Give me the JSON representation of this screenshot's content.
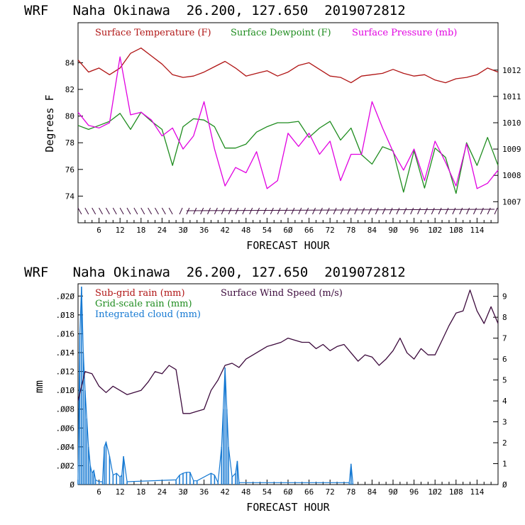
{
  "chart_data": [
    {
      "type": "line",
      "title": "WRF   Naha Okinawa  26.200, 127.650  2019072812",
      "xlabel": "FORECAST HOUR",
      "ylabel": "Degrees F",
      "xlim": [
        0,
        120
      ],
      "ylim": [
        72,
        87
      ],
      "y2lim": [
        1006.2,
        1013.8
      ],
      "x_ticks": [
        6,
        12,
        18,
        24,
        30,
        36,
        42,
        48,
        54,
        60,
        66,
        72,
        78,
        84,
        90,
        96,
        102,
        108,
        114
      ],
      "x_tick_labels": [
        "6",
        "12",
        "18",
        "24",
        "3Ø",
        "36",
        "42",
        "48",
        "54",
        "6Ø",
        "66",
        "72",
        "78",
        "84",
        "9Ø",
        "96",
        "1Ø2",
        "1Ø8",
        "114"
      ],
      "y_ticks": [
        74,
        76,
        78,
        80,
        82,
        84
      ],
      "y2_ticks": [
        1007,
        1008,
        1009,
        1010,
        1011,
        1012
      ],
      "series": [
        {
          "name": "Surface Temperature (F)",
          "color": "#b01414",
          "axis": "left",
          "x": [
            0,
            3,
            6,
            9,
            12,
            15,
            18,
            21,
            24,
            27,
            30,
            33,
            36,
            39,
            42,
            45,
            48,
            51,
            54,
            57,
            60,
            63,
            66,
            69,
            72,
            75,
            78,
            81,
            84,
            87,
            90,
            93,
            96,
            99,
            102,
            105,
            108,
            111,
            114,
            117,
            120
          ],
          "values": [
            84.2,
            83.3,
            83.6,
            83.1,
            83.6,
            84.7,
            85.1,
            84.5,
            83.9,
            83.1,
            82.9,
            83.0,
            83.3,
            83.7,
            84.1,
            83.6,
            83.0,
            83.2,
            83.4,
            83.0,
            83.3,
            83.8,
            84.0,
            83.5,
            83.0,
            82.9,
            82.5,
            83.0,
            83.1,
            83.2,
            83.5,
            83.2,
            83.0,
            83.1,
            82.7,
            82.5,
            82.8,
            82.9,
            83.1,
            83.6,
            83.3
          ]
        },
        {
          "name": "Surface Dewpoint (F)",
          "color": "#1e8c1e",
          "axis": "left",
          "x": [
            0,
            3,
            6,
            9,
            12,
            15,
            18,
            21,
            24,
            27,
            30,
            33,
            36,
            39,
            42,
            45,
            48,
            51,
            54,
            57,
            60,
            63,
            66,
            69,
            72,
            75,
            78,
            81,
            84,
            87,
            90,
            93,
            96,
            99,
            102,
            105,
            108,
            111,
            114,
            117,
            120
          ],
          "values": [
            79.3,
            79.0,
            79.3,
            79.6,
            80.2,
            79.0,
            80.3,
            79.6,
            79.0,
            76.3,
            79.2,
            79.8,
            79.7,
            79.2,
            77.6,
            77.6,
            77.9,
            78.8,
            79.2,
            79.5,
            79.5,
            79.6,
            78.4,
            79.1,
            79.6,
            78.2,
            79.1,
            77.1,
            76.4,
            77.7,
            77.4,
            74.3,
            77.4,
            74.6,
            77.6,
            76.9,
            74.2,
            78.0,
            76.3,
            78.4,
            76.3
          ]
        },
        {
          "name": "Surface Pressure (mb)",
          "color": "#e100e1",
          "axis": "right",
          "x": [
            0,
            3,
            6,
            9,
            12,
            15,
            18,
            21,
            24,
            27,
            30,
            33,
            36,
            39,
            42,
            45,
            48,
            51,
            54,
            57,
            60,
            63,
            66,
            69,
            72,
            75,
            78,
            81,
            84,
            87,
            90,
            93,
            96,
            99,
            102,
            105,
            108,
            111,
            114,
            117,
            120
          ],
          "values": [
            1010.4,
            1009.9,
            1009.8,
            1010.0,
            1012.5,
            1010.3,
            1010.4,
            1010.1,
            1009.5,
            1009.8,
            1009.0,
            1009.5,
            1010.8,
            1009.0,
            1007.6,
            1008.3,
            1008.1,
            1008.9,
            1007.5,
            1007.8,
            1009.6,
            1009.1,
            1009.6,
            1008.8,
            1009.3,
            1007.8,
            1008.8,
            1008.8,
            1010.8,
            1009.8,
            1008.9,
            1008.2,
            1009.0,
            1007.8,
            1009.3,
            1008.5,
            1007.6,
            1009.2,
            1007.5,
            1007.7,
            1008.2
          ]
        }
      ],
      "wind_barbs_note": "wind barbs along bottom",
      "wind_barb_hours": [
        1,
        3,
        5,
        7,
        9,
        11,
        13,
        15,
        17,
        19,
        21,
        23,
        25,
        27,
        29,
        31,
        33,
        35,
        37,
        39,
        41,
        43,
        45,
        47,
        49,
        51,
        53,
        55,
        57,
        59,
        61,
        63,
        65,
        67,
        69,
        71,
        73,
        75,
        77,
        79,
        81,
        83,
        85,
        87,
        89,
        91,
        93,
        95,
        97,
        99,
        101,
        103,
        105,
        107,
        109,
        111,
        113,
        115,
        117,
        119
      ]
    },
    {
      "type": "line",
      "title": "WRF   Naha Okinawa  26.200, 127.650  2019072812",
      "xlabel": "FORECAST HOUR",
      "ylabel": "mm",
      "xlim": [
        0,
        120
      ],
      "ylim": [
        0,
        0.0213
      ],
      "y2lim": [
        0,
        9.6
      ],
      "x_ticks": [
        6,
        12,
        18,
        24,
        30,
        36,
        42,
        48,
        54,
        60,
        66,
        72,
        78,
        84,
        90,
        96,
        102,
        108,
        114
      ],
      "x_tick_labels": [
        "6",
        "12",
        "18",
        "24",
        "3Ø",
        "36",
        "42",
        "48",
        "54",
        "6Ø",
        "66",
        "72",
        "78",
        "84",
        "9Ø",
        "96",
        "1Ø2",
        "1Ø8",
        "114"
      ],
      "y_ticks": [
        0,
        0.002,
        0.004,
        0.006,
        0.008,
        0.01,
        0.012,
        0.014,
        0.016,
        0.018,
        0.02
      ],
      "y_tick_labels": [
        "Ø",
        ".ØØ2",
        ".ØØ4",
        ".ØØ6",
        ".ØØ8",
        ".Ø1Ø",
        ".Ø12",
        ".Ø14",
        ".Ø16",
        ".Ø18",
        ".Ø2Ø"
      ],
      "y2_ticks": [
        0,
        1,
        2,
        3,
        4,
        5,
        6,
        7,
        8,
        9
      ],
      "y2_tick_labels": [
        "Ø",
        "1",
        "2",
        "3",
        "4",
        "5",
        "6",
        "7",
        "8",
        "9"
      ],
      "series": [
        {
          "name": "Sub-grid rain (mm)",
          "color": "#b01414",
          "axis": "left",
          "x": [],
          "values": []
        },
        {
          "name": "Grid-scale rain (mm)",
          "color": "#1e8c1e",
          "axis": "left",
          "x": [],
          "values": []
        },
        {
          "name": "Integrated cloud (mm)",
          "color": "#1478d2",
          "axis": "left",
          "x": [
            0,
            0.5,
            1,
            1.5,
            2,
            2.5,
            3,
            3.5,
            4,
            4.5,
            5,
            6,
            7,
            7.5,
            8,
            9,
            10,
            11,
            12,
            12.5,
            13,
            14,
            28,
            29,
            30,
            31,
            32,
            33,
            34,
            38,
            39,
            40,
            41,
            41.5,
            42,
            42.5,
            43,
            44,
            45,
            45.5,
            46,
            77.5,
            78,
            78.5
          ],
          "values": [
            0.0005,
            0.016,
            0.021,
            0.014,
            0.01,
            0.007,
            0.004,
            0.002,
            0.0012,
            0.0015,
            0.0005,
            0.0003,
            0.0003,
            0.004,
            0.0045,
            0.003,
            0.001,
            0.0012,
            0.0008,
            0.001,
            0.003,
            0.0003,
            0.0005,
            0.001,
            0.0012,
            0.0013,
            0.0013,
            0.0004,
            0.0004,
            0.0012,
            0.001,
            0.0002,
            0.004,
            0.008,
            0.0124,
            0.008,
            0.004,
            0.0008,
            0.0012,
            0.0025,
            0.0002,
            0.0002,
            0.0022,
            0.0002
          ]
        },
        {
          "name": "Surface Wind Speed (m/s)",
          "color": "#3c0a3c",
          "axis": "right",
          "x": [
            0,
            2,
            4,
            6,
            8,
            10,
            12,
            14,
            16,
            18,
            20,
            22,
            24,
            26,
            28,
            30,
            32,
            34,
            36,
            38,
            40,
            42,
            44,
            46,
            48,
            50,
            52,
            54,
            56,
            58,
            60,
            62,
            64,
            66,
            68,
            70,
            72,
            74,
            76,
            78,
            80,
            82,
            84,
            86,
            88,
            90,
            92,
            94,
            96,
            98,
            100,
            102,
            104,
            106,
            108,
            110,
            112,
            114,
            116,
            118,
            120
          ],
          "values": [
            4.0,
            5.4,
            5.3,
            4.7,
            4.4,
            4.7,
            4.5,
            4.3,
            4.4,
            4.5,
            4.9,
            5.4,
            5.3,
            5.7,
            5.5,
            3.4,
            3.4,
            3.5,
            3.6,
            4.5,
            5.0,
            5.7,
            5.8,
            5.6,
            6.0,
            6.2,
            6.4,
            6.6,
            6.7,
            6.8,
            7.0,
            6.9,
            6.8,
            6.8,
            6.5,
            6.7,
            6.4,
            6.6,
            6.7,
            6.3,
            5.9,
            6.2,
            6.1,
            5.7,
            6.0,
            6.4,
            7.0,
            6.3,
            6.0,
            6.5,
            6.2,
            6.2,
            6.9,
            7.6,
            8.2,
            8.3,
            9.3,
            8.3,
            7.7,
            8.5,
            7.7
          ]
        }
      ]
    }
  ]
}
